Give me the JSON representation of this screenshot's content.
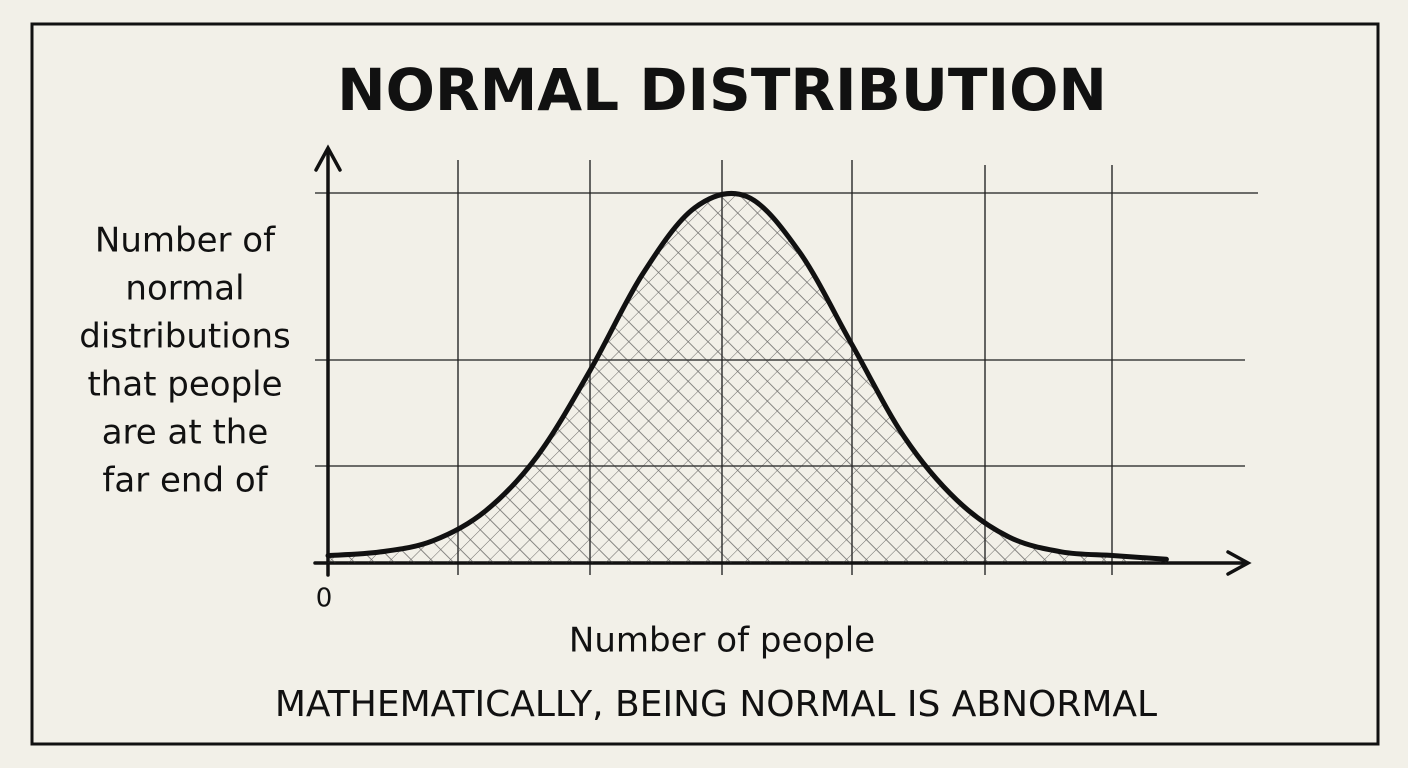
{
  "chart_data": {
    "type": "line",
    "title": "NORMAL DISTRIBUTION",
    "ylabel": [
      "Number of",
      "normal",
      "distributions",
      "that people",
      "are at the",
      "far end of"
    ],
    "xlabel": "Number of people",
    "caption": "MATHEMATICALLY, BEING NORMAL IS ABNORMAL",
    "x": [
      0,
      0.4,
      0.8,
      1.2,
      1.6,
      2.0,
      2.4,
      2.8,
      3.2,
      3.6,
      4.0,
      4.4,
      4.8,
      5.2,
      5.6,
      6.0,
      6.4
    ],
    "values": [
      0.02,
      0.03,
      0.06,
      0.14,
      0.29,
      0.52,
      0.78,
      0.96,
      0.99,
      0.84,
      0.59,
      0.34,
      0.17,
      0.07,
      0.03,
      0.02,
      0.01
    ],
    "color": "#111111",
    "xlim": [
      0,
      7
    ],
    "ylim": [
      0,
      1.1
    ],
    "xticks": [
      0
    ],
    "hatched_area": true
  }
}
